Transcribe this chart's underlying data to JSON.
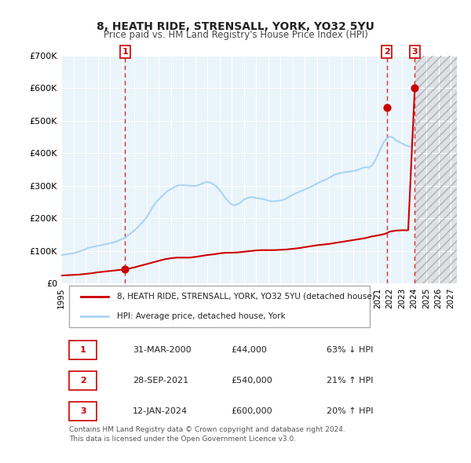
{
  "title": "8, HEATH RIDE, STRENSALL, YORK, YO32 5YU",
  "subtitle": "Price paid vs. HM Land Registry's House Price Index (HPI)",
  "hpi_color": "#aad4f5",
  "price_color": "#cc0000",
  "background_plot": "#eaf4fb",
  "background_future": "#e8e8e8",
  "ylim": [
    0,
    700000
  ],
  "yticks": [
    0,
    100000,
    200000,
    300000,
    400000,
    500000,
    600000,
    700000
  ],
  "ytick_labels": [
    "£0",
    "£100K",
    "£200K",
    "£300K",
    "£400K",
    "£500K",
    "£600K",
    "£700K"
  ],
  "xmin": 1995.0,
  "xmax": 2027.5,
  "future_start": 2024.1,
  "sale_dates": [
    2000.25,
    2021.74,
    2024.04
  ],
  "sale_prices": [
    44000,
    540000,
    600000
  ],
  "sale_labels": [
    "1",
    "2",
    "3"
  ],
  "vline_dates": [
    2000.25,
    2021.74,
    2024.04
  ],
  "legend_label_red": "8, HEATH RIDE, STRENSALL, YORK, YO32 5YU (detached house)",
  "legend_label_blue": "HPI: Average price, detached house, York",
  "table_rows": [
    [
      "1",
      "31-MAR-2000",
      "£44,000",
      "63% ↓ HPI"
    ],
    [
      "2",
      "28-SEP-2021",
      "£540,000",
      "21% ↑ HPI"
    ],
    [
      "3",
      "12-JAN-2024",
      "£600,000",
      "20% ↑ HPI"
    ]
  ],
  "footer": "Contains HM Land Registry data © Crown copyright and database right 2024.\nThis data is licensed under the Open Government Licence v3.0.",
  "hpi_data_x": [
    1995.0,
    1995.25,
    1995.5,
    1995.75,
    1996.0,
    1996.25,
    1996.5,
    1996.75,
    1997.0,
    1997.25,
    1997.5,
    1997.75,
    1998.0,
    1998.25,
    1998.5,
    1998.75,
    1999.0,
    1999.25,
    1999.5,
    1999.75,
    2000.0,
    2000.25,
    2000.5,
    2000.75,
    2001.0,
    2001.25,
    2001.5,
    2001.75,
    2002.0,
    2002.25,
    2002.5,
    2002.75,
    2003.0,
    2003.25,
    2003.5,
    2003.75,
    2004.0,
    2004.25,
    2004.5,
    2004.75,
    2005.0,
    2005.25,
    2005.5,
    2005.75,
    2006.0,
    2006.25,
    2006.5,
    2006.75,
    2007.0,
    2007.25,
    2007.5,
    2007.75,
    2008.0,
    2008.25,
    2008.5,
    2008.75,
    2009.0,
    2009.25,
    2009.5,
    2009.75,
    2010.0,
    2010.25,
    2010.5,
    2010.75,
    2011.0,
    2011.25,
    2011.5,
    2011.75,
    2012.0,
    2012.25,
    2012.5,
    2012.75,
    2013.0,
    2013.25,
    2013.5,
    2013.75,
    2014.0,
    2014.25,
    2014.5,
    2014.75,
    2015.0,
    2015.25,
    2015.5,
    2015.75,
    2016.0,
    2016.25,
    2016.5,
    2016.75,
    2017.0,
    2017.25,
    2017.5,
    2017.75,
    2018.0,
    2018.25,
    2018.5,
    2018.75,
    2019.0,
    2019.25,
    2019.5,
    2019.75,
    2020.0,
    2020.25,
    2020.5,
    2020.75,
    2021.0,
    2021.25,
    2021.5,
    2021.75,
    2022.0,
    2022.25,
    2022.5,
    2022.75,
    2023.0,
    2023.25,
    2023.5,
    2023.75,
    2024.0
  ],
  "hpi_data_y": [
    88000,
    89000,
    90500,
    92000,
    93500,
    96000,
    99000,
    102000,
    106000,
    110000,
    112000,
    114000,
    116000,
    118000,
    120000,
    122000,
    124000,
    126000,
    129000,
    133000,
    137000,
    141000,
    148000,
    156000,
    163000,
    172000,
    182000,
    192000,
    203000,
    218000,
    235000,
    248000,
    258000,
    268000,
    277000,
    285000,
    290000,
    296000,
    300000,
    303000,
    302000,
    302000,
    301000,
    300000,
    300000,
    302000,
    306000,
    310000,
    312000,
    310000,
    305000,
    298000,
    288000,
    275000,
    262000,
    252000,
    243000,
    241000,
    244000,
    250000,
    258000,
    262000,
    265000,
    265000,
    263000,
    262000,
    260000,
    258000,
    255000,
    253000,
    253000,
    254000,
    255000,
    257000,
    262000,
    267000,
    272000,
    277000,
    281000,
    285000,
    289000,
    293000,
    297000,
    302000,
    307000,
    312000,
    316000,
    320000,
    325000,
    330000,
    335000,
    338000,
    340000,
    342000,
    343000,
    344000,
    346000,
    348000,
    351000,
    355000,
    358000,
    356000,
    362000,
    375000,
    395000,
    415000,
    435000,
    446000,
    452000,
    448000,
    440000,
    435000,
    430000,
    425000,
    422000,
    420000,
    500000
  ],
  "price_line_x": [
    1995.0,
    1995.5,
    1996.0,
    1996.5,
    1997.0,
    1997.5,
    1998.0,
    1998.5,
    1999.0,
    1999.5,
    2000.0,
    2000.25,
    2000.5,
    2001.0,
    2001.5,
    2002.0,
    2002.5,
    2003.0,
    2003.5,
    2004.0,
    2004.5,
    2005.0,
    2005.5,
    2006.0,
    2006.5,
    2007.0,
    2007.5,
    2008.0,
    2008.5,
    2009.0,
    2009.5,
    2010.0,
    2010.5,
    2011.0,
    2011.5,
    2012.0,
    2012.5,
    2013.0,
    2013.5,
    2014.0,
    2014.5,
    2015.0,
    2015.5,
    2016.0,
    2016.5,
    2017.0,
    2017.5,
    2018.0,
    2018.5,
    2019.0,
    2019.5,
    2020.0,
    2020.5,
    2021.0,
    2021.5,
    2021.74,
    2022.0,
    2022.5,
    2023.0,
    2023.5,
    2024.04
  ],
  "price_line_y": [
    25000,
    26000,
    27000,
    28000,
    30000,
    32000,
    35000,
    37000,
    39000,
    41000,
    43000,
    44000,
    46000,
    50000,
    55000,
    60000,
    65000,
    70000,
    75000,
    78000,
    80000,
    80000,
    80000,
    82000,
    85000,
    88000,
    90000,
    93000,
    95000,
    95000,
    96000,
    98000,
    100000,
    102000,
    103000,
    103000,
    103000,
    104000,
    105000,
    107000,
    109000,
    112000,
    115000,
    118000,
    120000,
    122000,
    125000,
    128000,
    131000,
    134000,
    137000,
    140000,
    145000,
    148000,
    152000,
    155000,
    160000,
    163000,
    164000,
    164000,
    600000
  ]
}
